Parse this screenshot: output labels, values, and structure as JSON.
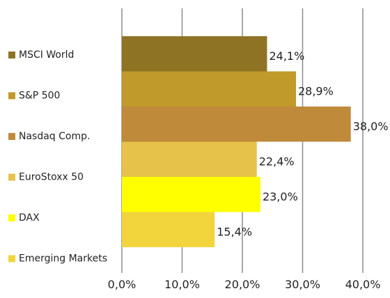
{
  "chart_data": {
    "type": "bar",
    "orientation": "horizontal",
    "title": "",
    "xlabel": "",
    "ylabel": "",
    "xlim": [
      0,
      40
    ],
    "ticks": [
      0,
      10,
      20,
      30,
      40
    ],
    "tick_labels": [
      "0,0%",
      "10,0%",
      "20,0%",
      "30,0%",
      "40,0%"
    ],
    "grid": true,
    "legend_position": "left",
    "series": [
      {
        "name": "MSCI World",
        "value": 24.1,
        "label": "24,1%",
        "color": "#8f7325"
      },
      {
        "name": "S&P 500",
        "value": 28.9,
        "label": "28,9%",
        "color": "#c09a2a"
      },
      {
        "name": "Nasdaq Comp.",
        "value": 38.0,
        "label": "38,0%",
        "color": "#bf8a3a"
      },
      {
        "name": "EuroStoxx 50",
        "value": 22.4,
        "label": "22,4%",
        "color": "#e6c24a"
      },
      {
        "name": "DAX",
        "value": 23.0,
        "label": "23,0%",
        "color": "#ffff00"
      },
      {
        "name": "Emerging Markets",
        "value": 15.4,
        "label": "15,4%",
        "color": "#f2d53c"
      }
    ]
  }
}
